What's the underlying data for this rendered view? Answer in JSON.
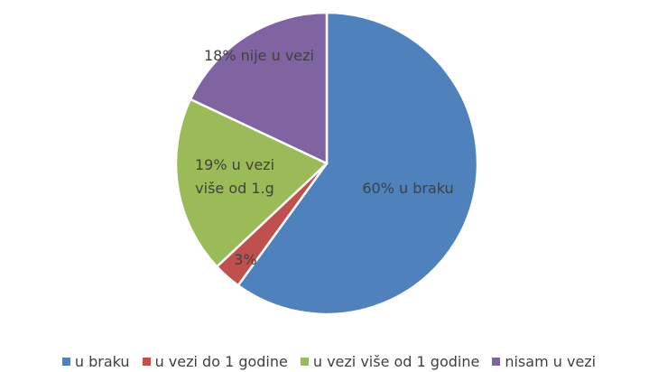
{
  "chart_data": {
    "type": "pie",
    "categories": [
      "u braku",
      "u vezi do 1 godine",
      "u vezi više od 1 godine",
      "nisam u vezi"
    ],
    "values": [
      60,
      3,
      19,
      18
    ],
    "value_labels": [
      "60% u braku",
      "3%",
      "19% u vezi više od 1.g",
      "18% nije u vezi"
    ],
    "colors": [
      "#4f81bd",
      "#c0504d",
      "#9bbb59",
      "#8064a2"
    ],
    "legend": "bottom"
  }
}
